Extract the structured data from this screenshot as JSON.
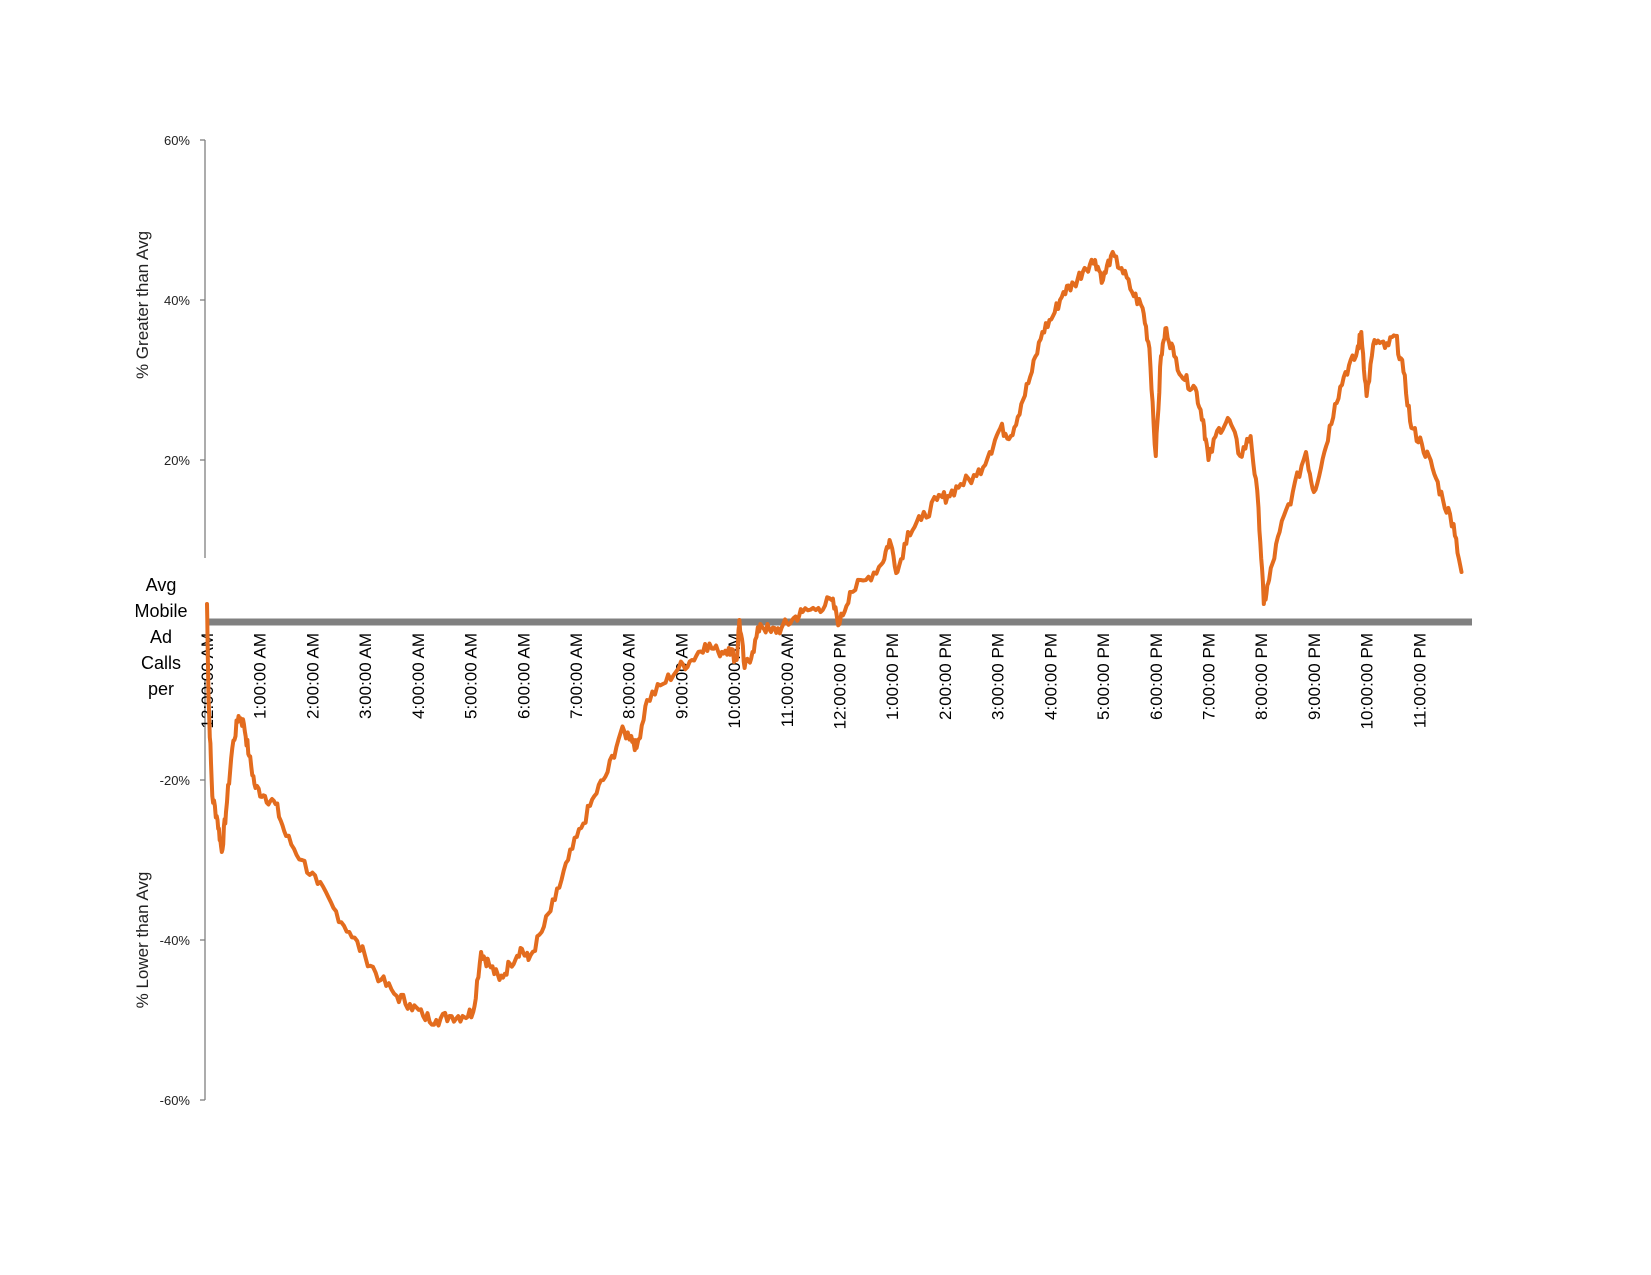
{
  "chart_data": {
    "type": "line",
    "title": "",
    "xlabel": "",
    "ylabel_upper": "% Greater than Avg",
    "ylabel_lower": "% Lower than Avg",
    "baseline_label_lines": [
      "Avg",
      "Mobile",
      "Ad",
      "Calls",
      "per"
    ],
    "y_ticks": [
      {
        "value": 60,
        "label": "60%"
      },
      {
        "value": 40,
        "label": "40%"
      },
      {
        "value": 20,
        "label": "20%"
      },
      {
        "value": -20,
        "label": "-20%"
      },
      {
        "value": -40,
        "label": "-40%"
      },
      {
        "value": -60,
        "label": "-60%"
      }
    ],
    "ylim": [
      -60,
      60
    ],
    "xlim": [
      0,
      24
    ],
    "x_ticks": [
      {
        "value": 0,
        "label": "12:00:00 AM"
      },
      {
        "value": 1,
        "label": "1:00:00 AM"
      },
      {
        "value": 2,
        "label": "2:00:00 AM"
      },
      {
        "value": 3,
        "label": "3:00:00 AM"
      },
      {
        "value": 4,
        "label": "4:00:00 AM"
      },
      {
        "value": 5,
        "label": "5:00:00 AM"
      },
      {
        "value": 6,
        "label": "6:00:00 AM"
      },
      {
        "value": 7,
        "label": "7:00:00 AM"
      },
      {
        "value": 8,
        "label": "8:00:00 AM"
      },
      {
        "value": 9,
        "label": "9:00:00 AM"
      },
      {
        "value": 10,
        "label": "10:00:00 AM"
      },
      {
        "value": 11,
        "label": "11:00:00 AM"
      },
      {
        "value": 12,
        "label": "12:00:00 PM"
      },
      {
        "value": 13,
        "label": "1:00:00 PM"
      },
      {
        "value": 14,
        "label": "2:00:00 PM"
      },
      {
        "value": 15,
        "label": "3:00:00 PM"
      },
      {
        "value": 16,
        "label": "4:00:00 PM"
      },
      {
        "value": 17,
        "label": "5:00:00 PM"
      },
      {
        "value": 18,
        "label": "6:00:00 PM"
      },
      {
        "value": 19,
        "label": "7:00:00 PM"
      },
      {
        "value": 20,
        "label": "8:00:00 PM"
      },
      {
        "value": 21,
        "label": "9:00:00 PM"
      },
      {
        "value": 22,
        "label": "10:00:00 PM"
      },
      {
        "value": 23,
        "label": "11:00:00 PM"
      }
    ],
    "grid": false,
    "colors": {
      "series": "#E36C1E",
      "baseline": "#808080",
      "axis": "#7f7f7f"
    },
    "series": [
      {
        "values": [
          {
            "x": 0.0,
            "y": 2
          },
          {
            "x": 0.03,
            "y": -10
          },
          {
            "x": 0.1,
            "y": -22
          },
          {
            "x": 0.2,
            "y": -25
          },
          {
            "x": 0.28,
            "y": -29
          },
          {
            "x": 0.36,
            "y": -24
          },
          {
            "x": 0.48,
            "y": -16
          },
          {
            "x": 0.6,
            "y": -12
          },
          {
            "x": 0.7,
            "y": -13
          },
          {
            "x": 0.8,
            "y": -17
          },
          {
            "x": 0.92,
            "y": -21
          },
          {
            "x": 1.1,
            "y": -22
          },
          {
            "x": 1.3,
            "y": -23
          },
          {
            "x": 1.5,
            "y": -27
          },
          {
            "x": 1.8,
            "y": -30
          },
          {
            "x": 2.1,
            "y": -33
          },
          {
            "x": 2.4,
            "y": -36
          },
          {
            "x": 2.7,
            "y": -39
          },
          {
            "x": 3.0,
            "y": -42
          },
          {
            "x": 3.3,
            "y": -45
          },
          {
            "x": 3.6,
            "y": -47
          },
          {
            "x": 3.85,
            "y": -48
          },
          {
            "x": 4.1,
            "y": -49.5
          },
          {
            "x": 4.35,
            "y": -50
          },
          {
            "x": 4.6,
            "y": -49.5
          },
          {
            "x": 4.85,
            "y": -49.5
          },
          {
            "x": 5.05,
            "y": -49
          },
          {
            "x": 5.2,
            "y": -41.5
          },
          {
            "x": 5.35,
            "y": -43
          },
          {
            "x": 5.55,
            "y": -45
          },
          {
            "x": 5.75,
            "y": -43
          },
          {
            "x": 5.95,
            "y": -41
          },
          {
            "x": 6.1,
            "y": -42.5
          },
          {
            "x": 6.35,
            "y": -39
          },
          {
            "x": 6.6,
            "y": -35
          },
          {
            "x": 6.85,
            "y": -30
          },
          {
            "x": 7.1,
            "y": -26
          },
          {
            "x": 7.35,
            "y": -22
          },
          {
            "x": 7.6,
            "y": -19
          },
          {
            "x": 7.85,
            "y": -14
          },
          {
            "x": 8.05,
            "y": -14.5
          },
          {
            "x": 8.15,
            "y": -16
          },
          {
            "x": 8.35,
            "y": -10
          },
          {
            "x": 8.65,
            "y": -8
          },
          {
            "x": 8.95,
            "y": -6
          },
          {
            "x": 9.2,
            "y": -5
          },
          {
            "x": 9.45,
            "y": -3
          },
          {
            "x": 9.7,
            "y": -4
          },
          {
            "x": 9.9,
            "y": -3.5
          },
          {
            "x": 10.05,
            "y": -5
          },
          {
            "x": 10.1,
            "y": 0
          },
          {
            "x": 10.2,
            "y": -6
          },
          {
            "x": 10.35,
            "y": -4
          },
          {
            "x": 10.5,
            "y": -0.5
          },
          {
            "x": 10.7,
            "y": -1.5
          },
          {
            "x": 10.9,
            "y": -1
          },
          {
            "x": 11.1,
            "y": 0
          },
          {
            "x": 11.3,
            "y": 1
          },
          {
            "x": 11.6,
            "y": 1.5
          },
          {
            "x": 11.85,
            "y": 2.5
          },
          {
            "x": 12.0,
            "y": -0.5
          },
          {
            "x": 12.2,
            "y": 3.5
          },
          {
            "x": 12.5,
            "y": 5
          },
          {
            "x": 12.8,
            "y": 7
          },
          {
            "x": 12.95,
            "y": 10
          },
          {
            "x": 13.1,
            "y": 6
          },
          {
            "x": 13.3,
            "y": 11
          },
          {
            "x": 13.55,
            "y": 12.5
          },
          {
            "x": 13.85,
            "y": 15
          },
          {
            "x": 14.05,
            "y": 15.5
          },
          {
            "x": 14.3,
            "y": 17
          },
          {
            "x": 14.6,
            "y": 18
          },
          {
            "x": 14.85,
            "y": 21
          },
          {
            "x": 15.05,
            "y": 24
          },
          {
            "x": 15.25,
            "y": 23
          },
          {
            "x": 15.45,
            "y": 27
          },
          {
            "x": 15.65,
            "y": 31
          },
          {
            "x": 15.85,
            "y": 36
          },
          {
            "x": 16.05,
            "y": 38
          },
          {
            "x": 16.25,
            "y": 41
          },
          {
            "x": 16.45,
            "y": 42
          },
          {
            "x": 16.65,
            "y": 44
          },
          {
            "x": 16.85,
            "y": 45
          },
          {
            "x": 17.0,
            "y": 42.5
          },
          {
            "x": 17.15,
            "y": 45.5
          },
          {
            "x": 17.35,
            "y": 44
          },
          {
            "x": 17.55,
            "y": 41
          },
          {
            "x": 17.75,
            "y": 39
          },
          {
            "x": 17.88,
            "y": 34
          },
          {
            "x": 18.0,
            "y": 20.5
          },
          {
            "x": 18.1,
            "y": 33
          },
          {
            "x": 18.2,
            "y": 36.5
          },
          {
            "x": 18.35,
            "y": 33
          },
          {
            "x": 18.55,
            "y": 30
          },
          {
            "x": 18.75,
            "y": 29
          },
          {
            "x": 18.9,
            "y": 25
          },
          {
            "x": 19.0,
            "y": 20
          },
          {
            "x": 19.2,
            "y": 24
          },
          {
            "x": 19.4,
            "y": 25
          },
          {
            "x": 19.6,
            "y": 20.5
          },
          {
            "x": 19.8,
            "y": 23
          },
          {
            "x": 19.95,
            "y": 14
          },
          {
            "x": 20.05,
            "y": 2
          },
          {
            "x": 20.15,
            "y": 5
          },
          {
            "x": 20.35,
            "y": 11
          },
          {
            "x": 20.6,
            "y": 16
          },
          {
            "x": 20.85,
            "y": 21
          },
          {
            "x": 21.0,
            "y": 16
          },
          {
            "x": 21.2,
            "y": 21
          },
          {
            "x": 21.4,
            "y": 27
          },
          {
            "x": 21.6,
            "y": 31
          },
          {
            "x": 21.8,
            "y": 33
          },
          {
            "x": 21.9,
            "y": 36
          },
          {
            "x": 22.0,
            "y": 28
          },
          {
            "x": 22.15,
            "y": 35
          },
          {
            "x": 22.35,
            "y": 34
          },
          {
            "x": 22.55,
            "y": 35.5
          },
          {
            "x": 22.7,
            "y": 31
          },
          {
            "x": 22.85,
            "y": 24
          },
          {
            "x": 23.05,
            "y": 22
          },
          {
            "x": 23.25,
            "y": 19
          },
          {
            "x": 23.45,
            "y": 15
          },
          {
            "x": 23.65,
            "y": 12
          },
          {
            "x": 23.8,
            "y": 6
          }
        ]
      }
    ]
  }
}
